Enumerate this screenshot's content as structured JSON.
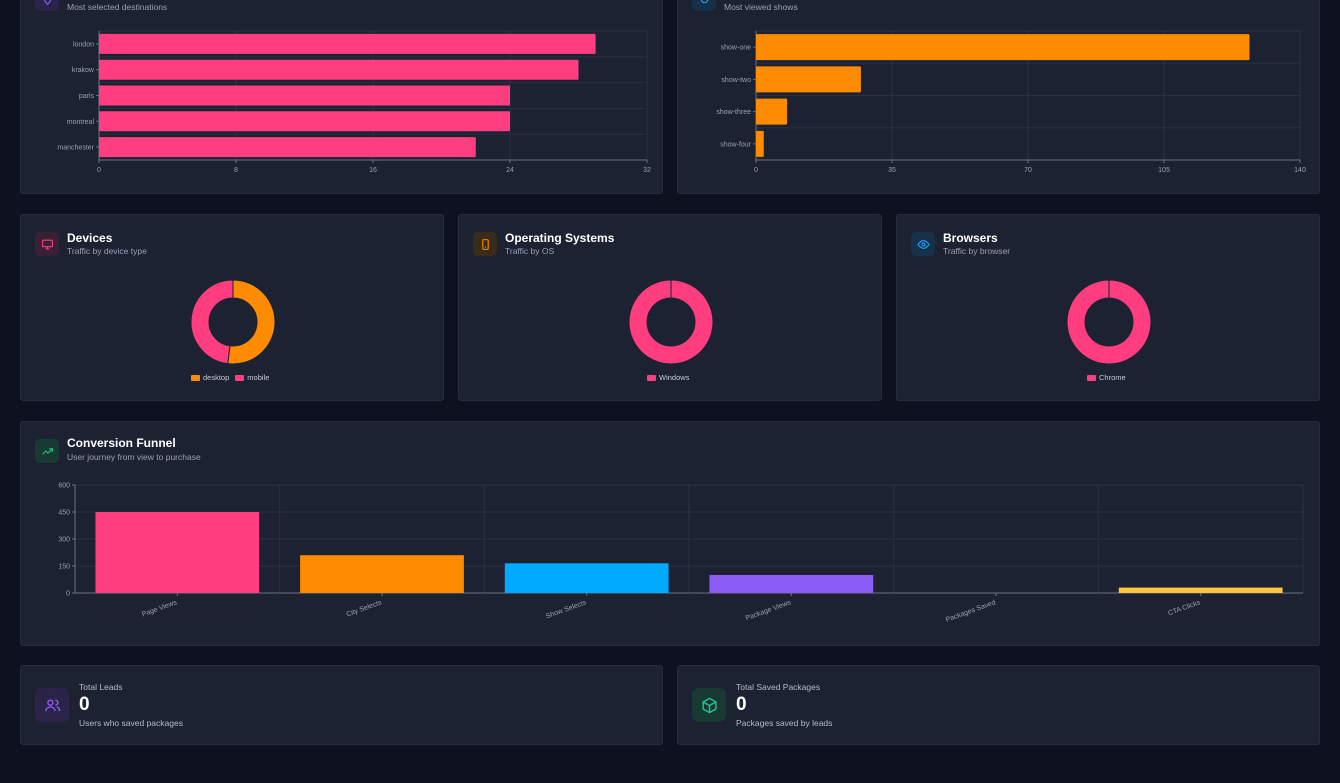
{
  "destinations_card": {
    "subtitle": "Most selected destinations",
    "chart_data": {
      "type": "bar",
      "orientation": "horizontal",
      "categories": [
        "london",
        "krakow",
        "paris",
        "montreal",
        "manchester"
      ],
      "values": [
        29,
        28,
        24,
        24,
        22
      ],
      "xticks": [
        "0",
        "8",
        "16",
        "24",
        "32"
      ],
      "xlim": [
        0,
        32
      ],
      "grid": true,
      "color": "#ff3d7f"
    }
  },
  "shows_card": {
    "subtitle": "Most viewed shows",
    "chart_data": {
      "type": "bar",
      "orientation": "horizontal",
      "categories": [
        "show-one",
        "show-two",
        "show-three",
        "show-four"
      ],
      "values": [
        127,
        27,
        8,
        2
      ],
      "xticks": [
        "0",
        "35",
        "70",
        "105",
        "140"
      ],
      "xlim": [
        0,
        140
      ],
      "grid": true,
      "color": "#ff8c00"
    }
  },
  "devices": {
    "title": "Devices",
    "subtitle": "Traffic by device type",
    "icon": "monitor-icon",
    "icon_color": "#ff3d7f",
    "chart_data": {
      "type": "pie",
      "variant": "doughnut",
      "labels": [
        "desktop",
        "mobile"
      ],
      "values": [
        52,
        48
      ],
      "colors": [
        "#ff8c00",
        "#ff3d7f"
      ],
      "legend": "bottom"
    }
  },
  "os": {
    "title": "Operating Systems",
    "subtitle": "Traffic by OS",
    "icon": "smartphone-icon",
    "icon_color": "#ff8c00",
    "chart_data": {
      "type": "pie",
      "variant": "doughnut",
      "labels": [
        "Windows"
      ],
      "values": [
        100
      ],
      "colors": [
        "#ff3d7f"
      ],
      "legend": "bottom"
    }
  },
  "browsers": {
    "title": "Browsers",
    "subtitle": "Traffic by browser",
    "icon": "eye-icon",
    "icon_color": "#1ea7ff",
    "chart_data": {
      "type": "pie",
      "variant": "doughnut",
      "labels": [
        "Chrome"
      ],
      "values": [
        100
      ],
      "colors": [
        "#ff3d7f"
      ],
      "legend": "bottom"
    }
  },
  "funnel": {
    "title": "Conversion Funnel",
    "subtitle": "User journey from view to purchase",
    "icon": "trending-up-icon",
    "icon_color": "#22c58b",
    "chart_data": {
      "type": "bar",
      "categories": [
        "Page Views",
        "City Selects",
        "Show Selects",
        "Package Views",
        "Packages Saved",
        "CTA Clicks"
      ],
      "values": [
        450,
        210,
        165,
        100,
        0,
        30
      ],
      "colors": [
        "#ff3d7f",
        "#ff8c00",
        "#00aaff",
        "#8b5cf6",
        "#22c58b",
        "#ffc53d"
      ],
      "yticks": [
        "0",
        "150",
        "300",
        "450",
        "600"
      ],
      "ylim": [
        0,
        600
      ],
      "grid": true
    }
  },
  "leads": {
    "label": "Total Leads",
    "value": "0",
    "sub": "Users who saved packages",
    "icon": "users-icon",
    "icon_color": "#8b5cf6"
  },
  "saved": {
    "label": "Total Saved Packages",
    "value": "0",
    "sub": "Packages saved by leads",
    "icon": "package-icon",
    "icon_color": "#22c58b"
  }
}
